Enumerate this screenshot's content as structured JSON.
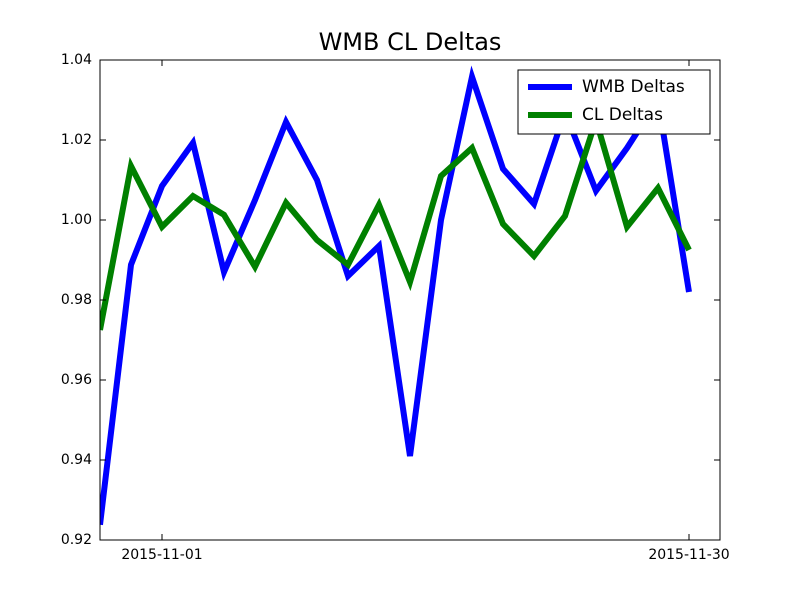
{
  "chart_data": {
    "type": "line",
    "title": "WMB CL Deltas",
    "x": [
      0,
      1,
      2,
      3,
      4,
      5,
      6,
      7,
      8,
      9,
      10,
      11,
      12,
      13,
      14,
      15,
      16,
      17,
      18,
      19
    ],
    "series": [
      {
        "name": "WMB Deltas",
        "color": "#0000ff",
        "values": [
          0.9238,
          0.9888,
          1.0085,
          1.0193,
          0.987,
          1.005,
          1.0245,
          1.01,
          0.986,
          0.9935,
          0.941,
          1.0,
          1.0358,
          1.0128,
          1.004,
          1.027,
          1.0073,
          1.018,
          1.03,
          0.982
        ]
      },
      {
        "name": "CL Deltas",
        "color": "#008000",
        "values": [
          0.9725,
          1.0135,
          0.9983,
          1.006,
          1.0013,
          0.9883,
          1.0043,
          0.995,
          0.9888,
          1.0038,
          0.9845,
          1.011,
          1.018,
          0.999,
          0.991,
          1.001,
          1.025,
          0.9983,
          1.008,
          0.9925
        ]
      }
    ],
    "xlim": [
      0,
      20
    ],
    "xticks": [
      {
        "value": 2,
        "label": "2015-11-01"
      },
      {
        "value": 19,
        "label": "2015-11-30"
      }
    ],
    "ylim": [
      0.92,
      1.04
    ],
    "yticks": [
      {
        "value": 0.92,
        "label": "0.92"
      },
      {
        "value": 0.94,
        "label": "0.94"
      },
      {
        "value": 0.96,
        "label": "0.96"
      },
      {
        "value": 0.98,
        "label": "0.98"
      },
      {
        "value": 1.0,
        "label": "1.00"
      },
      {
        "value": 1.02,
        "label": "1.02"
      },
      {
        "value": 1.04,
        "label": "1.04"
      }
    ],
    "legend": "upper right"
  }
}
